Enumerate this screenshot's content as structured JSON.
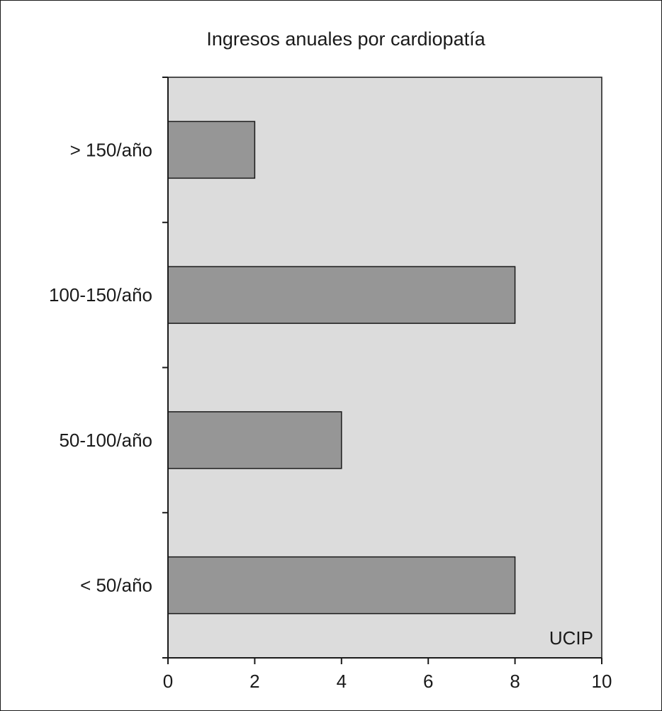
{
  "chart_data": {
    "type": "bar",
    "orientation": "horizontal",
    "title": "Ingresos anuales por cardiopatía",
    "categories": [
      "> 150/año",
      "100-150/año",
      "50-100/año",
      "< 50/año"
    ],
    "values": [
      2,
      8,
      4,
      8
    ],
    "xlim": [
      0,
      10
    ],
    "xticks": [
      "0",
      "2",
      "4",
      "6",
      "8",
      "10"
    ],
    "xlabel": "",
    "ylabel": "",
    "annotation": "UCIP",
    "grid": false,
    "legend": "none",
    "colors": {
      "plot_background": "#dcdcdc",
      "bar_fill": "#969696",
      "bar_stroke": "#1a1a1a",
      "axis": "#1a1a1a",
      "text": "#1a1a1a"
    }
  }
}
